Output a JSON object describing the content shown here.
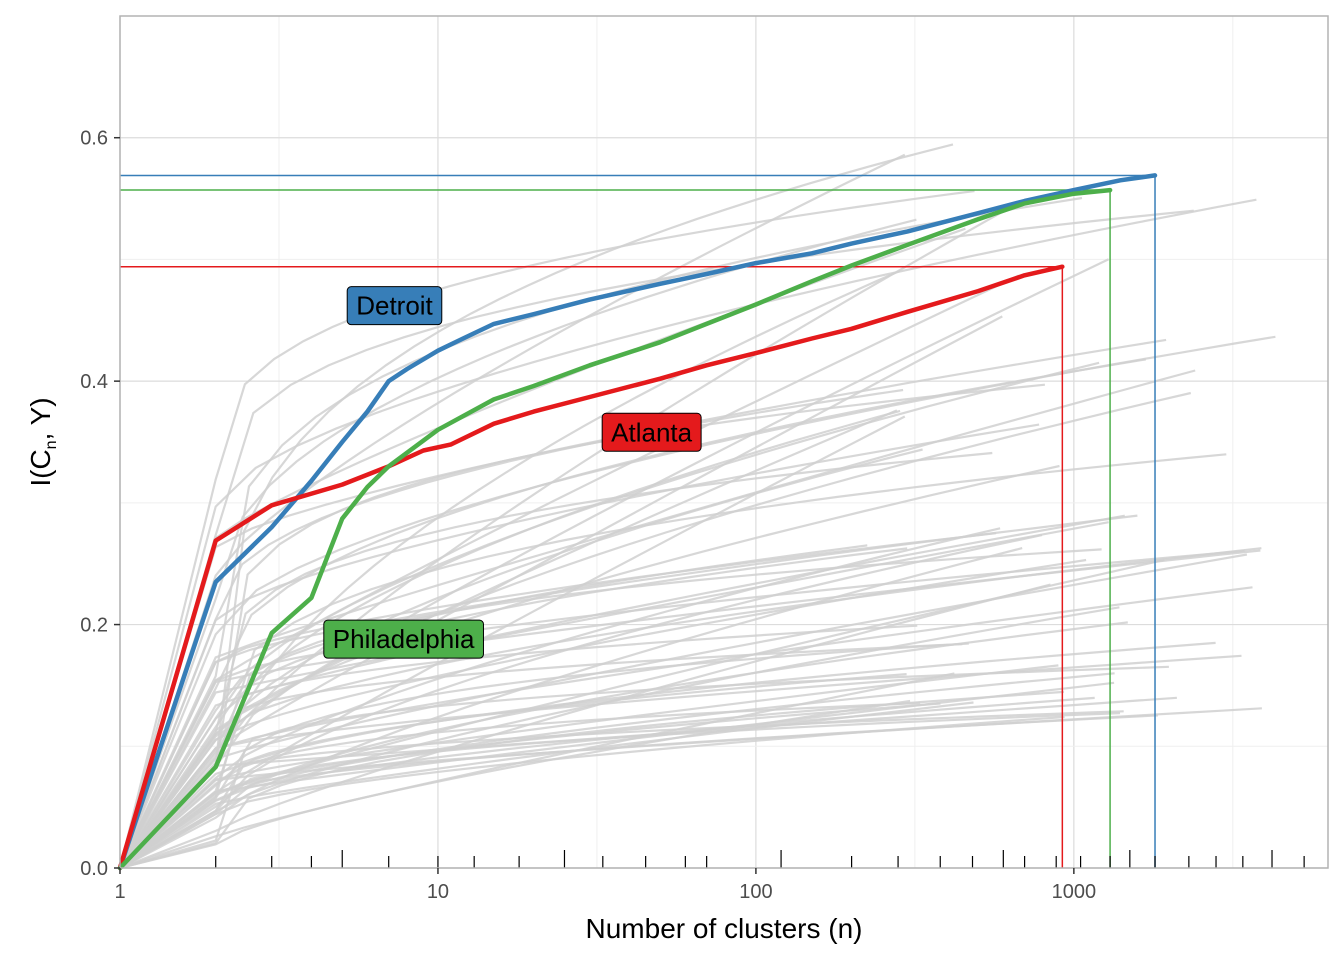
{
  "chart_data": {
    "type": "line",
    "xlabel": "Number of clusters (n)",
    "ylabel": {
      "main": "I(C",
      "sub": "n",
      "tail": ", Y)"
    },
    "x_scale": "log10",
    "xlim": [
      1,
      6300
    ],
    "ylim": [
      0,
      0.7
    ],
    "x_ticks": [
      {
        "value": 1,
        "label": "1"
      },
      {
        "value": 10,
        "label": "10"
      },
      {
        "value": 100,
        "label": "100"
      },
      {
        "value": 1000,
        "label": "1000"
      }
    ],
    "y_ticks": [
      {
        "value": 0,
        "label": "0.0"
      },
      {
        "value": 0.2,
        "label": "0.2"
      },
      {
        "value": 0.4,
        "label": "0.4"
      },
      {
        "value": 0.6,
        "label": "0.6"
      }
    ],
    "grid": true,
    "colors": {
      "background_lines": "#d0d0d0",
      "grid_major": "#dcdcdc",
      "grid_minor": "#efefef",
      "panel_border": "#b3b3b3"
    },
    "highlighted": [
      {
        "name": "Detroit",
        "color": "#377EB8",
        "label_at": [
          7.3,
          0.462
        ],
        "max": {
          "x": 1800,
          "y": 0.569
        },
        "points": [
          [
            1,
            0
          ],
          [
            2,
            0.235
          ],
          [
            3,
            0.28
          ],
          [
            4,
            0.318
          ],
          [
            5,
            0.35
          ],
          [
            6,
            0.375
          ],
          [
            7,
            0.4
          ],
          [
            8,
            0.41
          ],
          [
            10,
            0.425
          ],
          [
            12,
            0.435
          ],
          [
            15,
            0.447
          ],
          [
            20,
            0.455
          ],
          [
            30,
            0.467
          ],
          [
            50,
            0.48
          ],
          [
            70,
            0.488
          ],
          [
            100,
            0.497
          ],
          [
            150,
            0.505
          ],
          [
            200,
            0.513
          ],
          [
            300,
            0.523
          ],
          [
            500,
            0.538
          ],
          [
            700,
            0.548
          ],
          [
            1000,
            0.557
          ],
          [
            1400,
            0.565
          ],
          [
            1800,
            0.569
          ]
        ]
      },
      {
        "name": "Atlanta",
        "color": "#E41A1C",
        "label_at": [
          47,
          0.358
        ],
        "max": {
          "x": 920,
          "y": 0.494
        },
        "points": [
          [
            1,
            0
          ],
          [
            2,
            0.269
          ],
          [
            3,
            0.298
          ],
          [
            5,
            0.315
          ],
          [
            7,
            0.33
          ],
          [
            9,
            0.343
          ],
          [
            11,
            0.348
          ],
          [
            15,
            0.365
          ],
          [
            20,
            0.375
          ],
          [
            30,
            0.387
          ],
          [
            50,
            0.402
          ],
          [
            70,
            0.413
          ],
          [
            100,
            0.423
          ],
          [
            150,
            0.435
          ],
          [
            200,
            0.443
          ],
          [
            300,
            0.457
          ],
          [
            500,
            0.474
          ],
          [
            700,
            0.487
          ],
          [
            920,
            0.494
          ]
        ]
      },
      {
        "name": "Philadelphia",
        "color": "#4DAF4A",
        "label_at": [
          7.8,
          0.188
        ],
        "max": {
          "x": 1300,
          "y": 0.557
        },
        "points": [
          [
            1,
            0
          ],
          [
            2,
            0.083
          ],
          [
            3,
            0.193
          ],
          [
            4,
            0.222
          ],
          [
            5,
            0.287
          ],
          [
            6,
            0.313
          ],
          [
            7,
            0.33
          ],
          [
            10,
            0.36
          ],
          [
            15,
            0.385
          ],
          [
            20,
            0.396
          ],
          [
            30,
            0.413
          ],
          [
            50,
            0.432
          ],
          [
            70,
            0.447
          ],
          [
            100,
            0.463
          ],
          [
            150,
            0.482
          ],
          [
            200,
            0.495
          ],
          [
            300,
            0.512
          ],
          [
            500,
            0.533
          ],
          [
            700,
            0.546
          ],
          [
            1000,
            0.554
          ],
          [
            1300,
            0.557
          ]
        ]
      }
    ]
  }
}
